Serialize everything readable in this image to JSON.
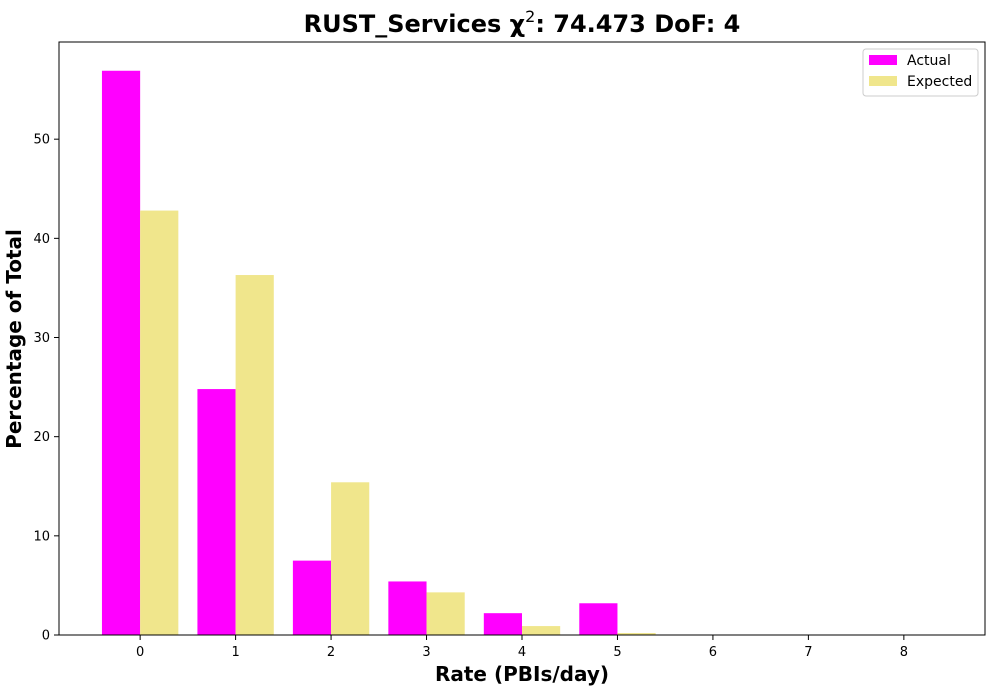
{
  "chart_data": {
    "type": "bar",
    "title": "RUST_Services χ²: 74.473 DoF: 4",
    "xlabel": "Rate (PBIs/day)",
    "ylabel": "Percentage of Total",
    "categories": [
      "0",
      "1",
      "2",
      "3",
      "4",
      "5",
      "6",
      "7",
      "8"
    ],
    "series": [
      {
        "name": "Actual",
        "color": "#ff00ff",
        "values": [
          56.9,
          24.8,
          7.5,
          5.4,
          2.2,
          3.2,
          0,
          0,
          0
        ]
      },
      {
        "name": "Expected",
        "color": "#f0e68c",
        "values": [
          42.8,
          36.3,
          15.4,
          4.3,
          0.9,
          0.2,
          0,
          0,
          0
        ]
      }
    ],
    "xlim": [
      -0.85,
      8.85
    ],
    "ylim": [
      0,
      59.8
    ],
    "yticks": [
      0,
      10,
      20,
      30,
      40,
      50
    ],
    "grid": false,
    "legend_position": "top-right"
  }
}
